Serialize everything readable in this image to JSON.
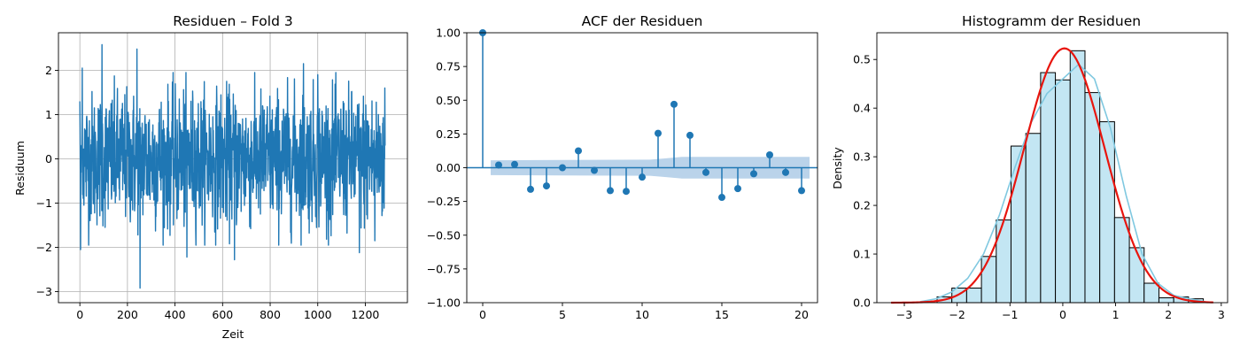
{
  "colors": {
    "series": "#1f77b4",
    "band": "#aecbe6",
    "hist_fill": "#c3e6f3",
    "kde_light": "#7fc8e0",
    "normal_fit": "#e8150e",
    "grid": "#b0b0b0"
  },
  "chart_data": [
    {
      "type": "line",
      "title": "Residuen – Fold 3",
      "xlabel": "Zeit",
      "ylabel": "Residuum",
      "xlim": [
        -90,
        1377
      ],
      "ylim": [
        -3.25,
        2.85
      ],
      "xticks": [
        0,
        200,
        400,
        600,
        800,
        1000,
        1200
      ],
      "xtick_labels": [
        "0",
        "200",
        "400",
        "600",
        "800",
        "1000",
        "1200"
      ],
      "yticks": [
        -3,
        -2,
        -1,
        0,
        1,
        2
      ],
      "ytick_labels": [
        "−3",
        "−2",
        "−1",
        "0",
        "1",
        "2"
      ],
      "grid": true,
      "n_points": 1284,
      "noise_sd": 0.75,
      "highlighted_points": [
        {
          "x": 0,
          "y": 1.3
        },
        {
          "x": 3,
          "y": -2.05
        },
        {
          "x": 10,
          "y": 2.05
        },
        {
          "x": 93,
          "y": 2.58
        },
        {
          "x": 240,
          "y": 2.48
        },
        {
          "x": 253,
          "y": -2.92
        },
        {
          "x": 450,
          "y": -2.22
        },
        {
          "x": 650,
          "y": -2.28
        },
        {
          "x": 940,
          "y": 2.15
        },
        {
          "x": 1000,
          "y": 1.9
        },
        {
          "x": 1175,
          "y": -2.12
        },
        {
          "x": 1240,
          "y": -1.85
        },
        {
          "x": 1283,
          "y": 0.3
        }
      ]
    },
    {
      "type": "stem",
      "title": "ACF der Residuen",
      "xlim": [
        -1,
        21
      ],
      "ylim": [
        -1.0,
        1.0
      ],
      "xticks": [
        0,
        5,
        10,
        15,
        20
      ],
      "xtick_labels": [
        "0",
        "5",
        "10",
        "15",
        "20"
      ],
      "yticks": [
        -1.0,
        -0.75,
        -0.5,
        -0.25,
        0.0,
        0.25,
        0.5,
        0.75,
        1.0
      ],
      "ytick_labels": [
        "−1.00",
        "−0.75",
        "−0.50",
        "−0.25",
        "0.00",
        "0.25",
        "0.50",
        "0.75",
        "1.00"
      ],
      "grid": false,
      "lags": [
        0,
        1,
        2,
        3,
        4,
        5,
        6,
        7,
        8,
        9,
        10,
        11,
        12,
        13,
        14,
        15,
        16,
        17,
        18,
        19,
        20
      ],
      "acf": [
        1.0,
        0.02,
        0.025,
        -0.16,
        -0.135,
        0.0,
        0.125,
        -0.02,
        -0.17,
        -0.175,
        -0.07,
        0.255,
        0.47,
        0.24,
        -0.035,
        -0.22,
        -0.155,
        -0.045,
        0.095,
        -0.035,
        -0.17
      ],
      "confidence_band": {
        "x": [
          0.5,
          10.5,
          11.5,
          12.5,
          20.5
        ],
        "upper": [
          0.055,
          0.06,
          0.07,
          0.08,
          0.08
        ],
        "lower": [
          -0.055,
          -0.06,
          -0.07,
          -0.08,
          -0.08
        ]
      }
    },
    {
      "type": "histogram",
      "title": "Histogramm der Residuen",
      "ylabel": "Density",
      "xlim": [
        -3.52,
        3.12
      ],
      "ylim": [
        0,
        0.555
      ],
      "xticks": [
        -3,
        -2,
        -1,
        0,
        1,
        2,
        3
      ],
      "xtick_labels": [
        "−3",
        "−2",
        "−1",
        "0",
        "1",
        "2",
        "3"
      ],
      "yticks": [
        0.0,
        0.1,
        0.2,
        0.3,
        0.4,
        0.5
      ],
      "ytick_labels": [
        "0.0",
        "0.1",
        "0.2",
        "0.3",
        "0.4",
        "0.5"
      ],
      "grid": false,
      "bin_edges": [
        -2.38,
        -2.1,
        -1.82,
        -1.54,
        -1.26,
        -0.98,
        -0.7,
        -0.42,
        -0.14,
        0.14,
        0.42,
        0.7,
        0.98,
        1.26,
        1.54,
        1.82,
        2.1,
        2.38,
        2.66
      ],
      "densities": [
        0.012,
        0.03,
        0.03,
        0.095,
        0.17,
        0.322,
        0.348,
        0.473,
        0.458,
        0.518,
        0.432,
        0.372,
        0.175,
        0.113,
        0.04,
        0.01,
        0.012,
        0.008
      ],
      "kde": {
        "x": [
          -2.7,
          -2.4,
          -2.1,
          -1.8,
          -1.5,
          -1.2,
          -0.9,
          -0.6,
          -0.3,
          0.0,
          0.3,
          0.6,
          0.9,
          1.2,
          1.5,
          1.8,
          2.1,
          2.4,
          2.7
        ],
        "y": [
          0.002,
          0.008,
          0.022,
          0.05,
          0.1,
          0.18,
          0.28,
          0.37,
          0.43,
          0.46,
          0.49,
          0.46,
          0.36,
          0.22,
          0.1,
          0.04,
          0.015,
          0.008,
          0.002
        ]
      },
      "normal_fit": {
        "mean": 0.03,
        "sd": 0.763,
        "x_range": [
          -3.25,
          2.85
        ]
      }
    }
  ]
}
